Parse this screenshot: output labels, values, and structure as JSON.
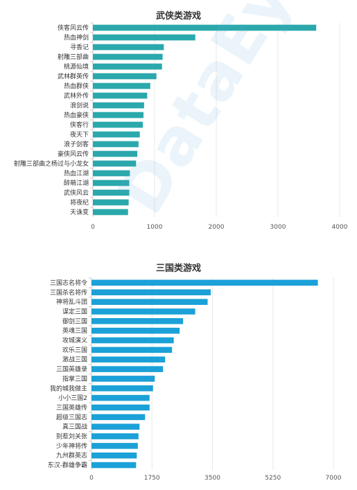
{
  "watermark": "DataEye",
  "chart_data": [
    {
      "type": "bar",
      "orientation": "horizontal",
      "title": "武侠类游戏",
      "color": "#2BA8AC",
      "categories": [
        "侠客风云传",
        "热血神剑",
        "寻香记",
        "射雕三部曲",
        "桃源仙境",
        "武林群英传",
        "热血群侠",
        "武林外传",
        "浪剑说",
        "热血豪侠",
        "侠客行",
        "夜天下",
        "浪子剑客",
        "豪侠风云传",
        "射雕三部曲之杨过与小龙女",
        "热血江湖",
        "醉萌江湖",
        "武侠风云",
        "将夜纪",
        "天诛变"
      ],
      "values": [
        3620,
        1660,
        1150,
        1130,
        1120,
        1030,
        930,
        880,
        830,
        820,
        810,
        760,
        740,
        720,
        700,
        600,
        590,
        590,
        580,
        570
      ],
      "xlim": [
        0,
        4000
      ],
      "xticks": [
        0,
        1000,
        2000,
        3000,
        4000
      ],
      "grid": true
    },
    {
      "type": "bar",
      "orientation": "horizontal",
      "title": "三国类游戏",
      "color": "#1BA1D8",
      "categories": [
        "三国志名将令",
        "三国杀名将传",
        "神将乱斗团",
        "谋定三国",
        "御剑三国",
        "英魂三国",
        "攻城演义",
        "欢乐三国",
        "激战三国",
        "三国英雄录",
        "指掌三国",
        "我的城我做主",
        "小小三国2",
        "三国英雄传",
        "超级三国志",
        "真三国战",
        "别惹刘关张",
        "少年神将传",
        "九州群英志",
        "东汉-群雄争霸"
      ],
      "values": [
        6550,
        3450,
        3360,
        3000,
        2650,
        2550,
        2380,
        2330,
        2130,
        2070,
        1830,
        1780,
        1680,
        1680,
        1550,
        1390,
        1360,
        1340,
        1310,
        1290
      ],
      "xlim": [
        0,
        7000
      ],
      "xticks": [
        0,
        1750,
        3500,
        5250,
        7000
      ],
      "grid": true
    }
  ]
}
